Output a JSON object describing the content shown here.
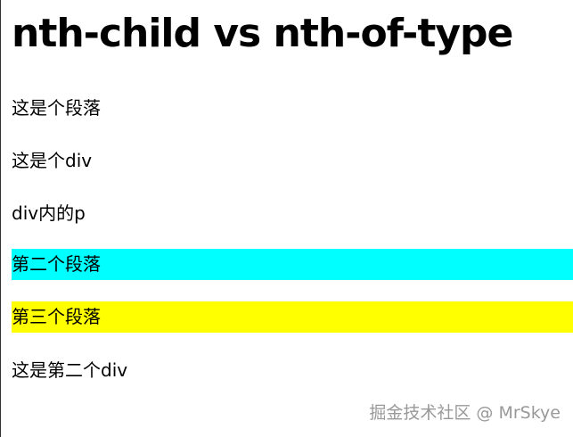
{
  "header": {
    "title": "nth-child vs nth-of-type"
  },
  "items": [
    "这是个段落",
    "这是个div",
    "div内的p",
    "第二个段落",
    "第三个段落",
    "这是第二个div"
  ],
  "watermark": "掘金技术社区 @ MrSkye"
}
